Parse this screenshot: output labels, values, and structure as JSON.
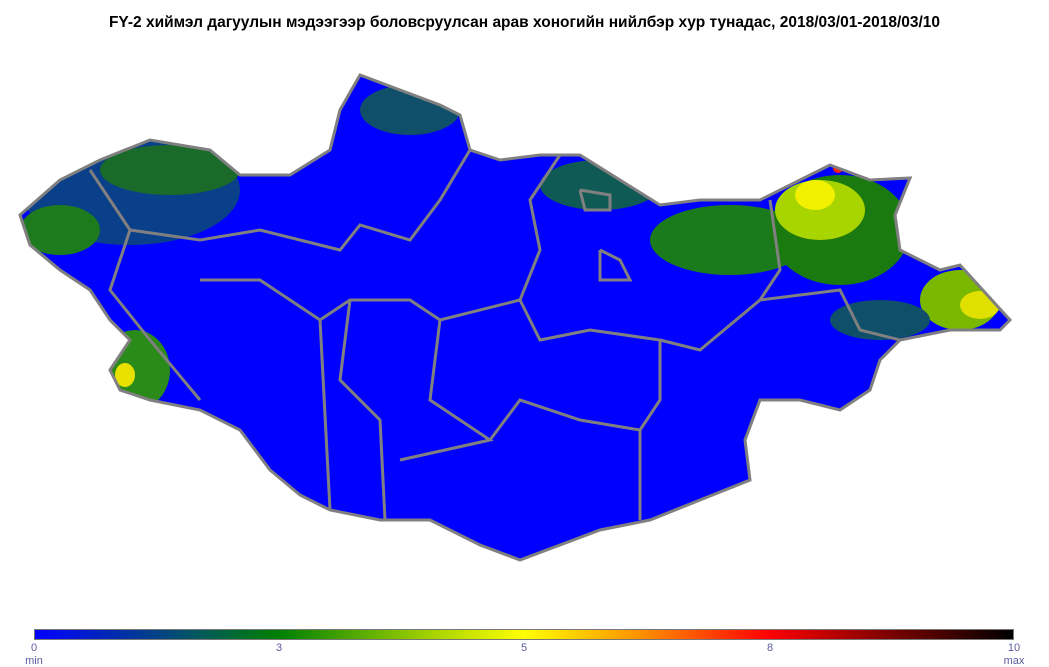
{
  "title": "FY-2 хиймэл дагуулын мэдээгээр боловсруулсан арав хоногийн нийлбэр хур тунадас, 2018/03/01-2018/03/10",
  "colorbar": {
    "ticks": [
      "0",
      "3",
      "5",
      "8",
      "10"
    ],
    "min_label": "min",
    "max_label": "max",
    "colors": [
      "#0000ff",
      "#005a5a",
      "#008000",
      "#a0d000",
      "#ffff00",
      "#ff9000",
      "#ff0000",
      "#800000",
      "#000000"
    ]
  },
  "map": {
    "land_color": "#0000ff",
    "border_color": "#808080"
  }
}
